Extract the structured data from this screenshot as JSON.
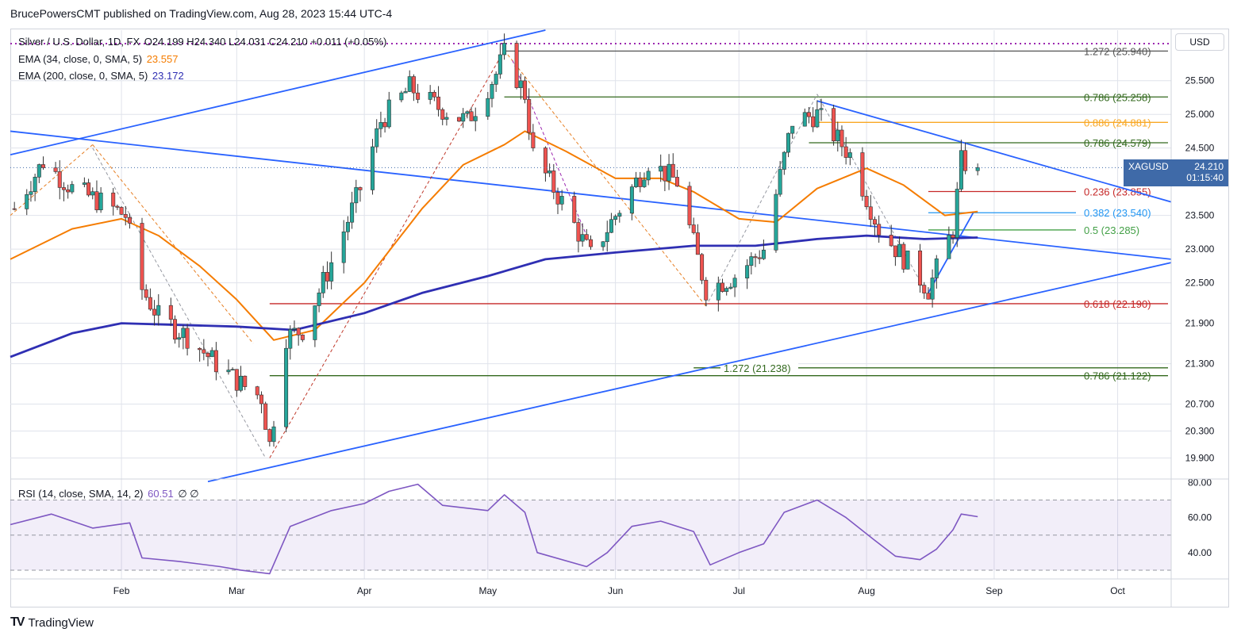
{
  "header": {
    "publisher": "BrucePowersCMT published on TradingView.com, Aug 28, 2023 15:44 UTC-4"
  },
  "legend": {
    "symbol": "Silver / U.S. Dollar, 1D, FX",
    "ohlc": "O24.199  H24.340  L24.031  C24.210  +0.011 (+0.05%)",
    "ema34_label": "EMA (34, close, 0, SMA, 5)",
    "ema34_value": "23.557",
    "ema200_label": "EMA (200, close, 0, SMA, 5)",
    "ema200_value": "23.172",
    "rsi_label": "RSI (14, close, SMA, 14, 2)",
    "rsi_value": "60.51",
    "rsi_extra": "∅  ∅"
  },
  "currency_button": "USD",
  "price_tag": {
    "symbol": "XAGUSD",
    "price": "24.210",
    "countdown": "01:15:40"
  },
  "footer": {
    "brand": "TradingView",
    "logo": "TV"
  },
  "colors": {
    "up": "#26a69a",
    "down": "#ef5350",
    "ema34": "#f57c00",
    "ema200": "#2f2fb3",
    "trend": "#2962ff",
    "fib_green": "#33691e",
    "fib_red": "#b71c1c",
    "fib_orange": "#f9a825",
    "fib_blue": "#2196f3",
    "rsi": "#7e57c2",
    "grid": "#e0e3eb"
  },
  "chart_data": [
    {
      "type": "candlestick",
      "title": "",
      "ylim": [
        19.6,
        26.25
      ],
      "y_ticks": [
        "25.500",
        "25.000",
        "24.500",
        "23.500",
        "23.000",
        "22.500",
        "21.900",
        "21.300",
        "20.700",
        "20.300",
        "19.900"
      ],
      "y_tick_values": [
        25.5,
        25.0,
        24.5,
        23.5,
        23.0,
        22.5,
        21.9,
        21.3,
        20.7,
        20.3,
        19.9
      ],
      "x_ticks": [
        "Feb",
        "Mar",
        "Apr",
        "May",
        "Jun",
        "Jul",
        "Aug",
        "Sep",
        "Oct"
      ],
      "x_tick_dates": [
        "2023-02-01",
        "2023-03-01",
        "2023-04-01",
        "2023-05-01",
        "2023-06-01",
        "2023-07-01",
        "2023-08-01",
        "2023-09-01",
        "2023-10-01"
      ],
      "x_range": [
        "2023-01-05",
        "2023-10-14"
      ],
      "close_series": [
        {
          "date": "2023-01-06",
          "close": 23.6
        },
        {
          "date": "2023-01-13",
          "close": 24.3
        },
        {
          "date": "2023-01-20",
          "close": 23.9
        },
        {
          "date": "2023-01-27",
          "close": 23.7
        },
        {
          "date": "2023-02-02",
          "close": 23.5
        },
        {
          "date": "2023-02-06",
          "close": 22.4
        },
        {
          "date": "2023-02-10",
          "close": 22.0
        },
        {
          "date": "2023-02-17",
          "close": 21.7
        },
        {
          "date": "2023-02-24",
          "close": 21.3
        },
        {
          "date": "2023-03-02",
          "close": 21.0
        },
        {
          "date": "2023-03-07",
          "close": 20.8
        },
        {
          "date": "2023-03-09",
          "close": 20.1
        },
        {
          "date": "2023-03-13",
          "close": 21.7
        },
        {
          "date": "2023-03-17",
          "close": 21.8
        },
        {
          "date": "2023-03-24",
          "close": 22.8
        },
        {
          "date": "2023-03-31",
          "close": 23.9
        },
        {
          "date": "2023-04-05",
          "close": 24.9
        },
        {
          "date": "2023-04-12",
          "close": 25.4
        },
        {
          "date": "2023-04-19",
          "close": 25.1
        },
        {
          "date": "2023-04-26",
          "close": 24.9
        },
        {
          "date": "2023-05-03",
          "close": 25.6
        },
        {
          "date": "2023-05-05",
          "close": 25.9
        },
        {
          "date": "2023-05-10",
          "close": 25.3
        },
        {
          "date": "2023-05-12",
          "close": 24.4
        },
        {
          "date": "2023-05-19",
          "close": 23.7
        },
        {
          "date": "2023-05-26",
          "close": 22.9
        },
        {
          "date": "2023-06-02",
          "close": 23.6
        },
        {
          "date": "2023-06-09",
          "close": 24.3
        },
        {
          "date": "2023-06-16",
          "close": 24.0
        },
        {
          "date": "2023-06-23",
          "close": 22.4
        },
        {
          "date": "2023-06-30",
          "close": 22.6
        },
        {
          "date": "2023-07-07",
          "close": 23.0
        },
        {
          "date": "2023-07-14",
          "close": 24.9
        },
        {
          "date": "2023-07-20",
          "close": 25.0
        },
        {
          "date": "2023-07-28",
          "close": 24.4
        },
        {
          "date": "2023-08-04",
          "close": 23.3
        },
        {
          "date": "2023-08-11",
          "close": 22.8
        },
        {
          "date": "2023-08-16",
          "close": 22.4
        },
        {
          "date": "2023-08-22",
          "close": 23.3
        },
        {
          "date": "2023-08-24",
          "close": 24.3
        },
        {
          "date": "2023-08-28",
          "close": 24.21
        }
      ],
      "series": [
        {
          "name": "EMA (34, close, 0, SMA, 5)",
          "points": [
            {
              "date": "2023-01-05",
              "value": 22.85
            },
            {
              "date": "2023-01-20",
              "value": 23.3
            },
            {
              "date": "2023-02-01",
              "value": 23.45
            },
            {
              "date": "2023-02-10",
              "value": 23.2
            },
            {
              "date": "2023-02-20",
              "value": 22.75
            },
            {
              "date": "2023-03-01",
              "value": 22.25
            },
            {
              "date": "2023-03-10",
              "value": 21.65
            },
            {
              "date": "2023-03-20",
              "value": 21.8
            },
            {
              "date": "2023-04-01",
              "value": 22.5
            },
            {
              "date": "2023-04-15",
              "value": 23.6
            },
            {
              "date": "2023-04-25",
              "value": 24.25
            },
            {
              "date": "2023-05-05",
              "value": 24.55
            },
            {
              "date": "2023-05-10",
              "value": 24.75
            },
            {
              "date": "2023-05-20",
              "value": 24.45
            },
            {
              "date": "2023-06-01",
              "value": 24.05
            },
            {
              "date": "2023-06-12",
              "value": 24.05
            },
            {
              "date": "2023-06-20",
              "value": 23.85
            },
            {
              "date": "2023-07-01",
              "value": 23.45
            },
            {
              "date": "2023-07-10",
              "value": 23.4
            },
            {
              "date": "2023-07-20",
              "value": 23.9
            },
            {
              "date": "2023-08-01",
              "value": 24.2
            },
            {
              "date": "2023-08-10",
              "value": 23.95
            },
            {
              "date": "2023-08-20",
              "value": 23.5
            },
            {
              "date": "2023-08-28",
              "value": 23.557
            }
          ]
        },
        {
          "name": "EMA (200, close, 0, SMA, 5)",
          "points": [
            {
              "date": "2023-01-05",
              "value": 21.4
            },
            {
              "date": "2023-01-20",
              "value": 21.75
            },
            {
              "date": "2023-02-01",
              "value": 21.9
            },
            {
              "date": "2023-03-01",
              "value": 21.85
            },
            {
              "date": "2023-03-15",
              "value": 21.8
            },
            {
              "date": "2023-04-01",
              "value": 22.05
            },
            {
              "date": "2023-04-15",
              "value": 22.35
            },
            {
              "date": "2023-05-01",
              "value": 22.6
            },
            {
              "date": "2023-05-15",
              "value": 22.85
            },
            {
              "date": "2023-06-01",
              "value": 22.95
            },
            {
              "date": "2023-06-20",
              "value": 23.05
            },
            {
              "date": "2023-07-05",
              "value": 23.05
            },
            {
              "date": "2023-07-20",
              "value": 23.15
            },
            {
              "date": "2023-08-01",
              "value": 23.2
            },
            {
              "date": "2023-08-15",
              "value": 23.15
            },
            {
              "date": "2023-08-28",
              "value": 23.172
            }
          ]
        }
      ],
      "fib_levels": [
        {
          "ratio": "1.272",
          "price": 25.94,
          "label": "1.272 (25.940)",
          "color": "#555555",
          "from": "2023-05-05"
        },
        {
          "ratio": "0.786",
          "price": 25.258,
          "label": "0.786 (25.258)",
          "color": "#33691e",
          "from": "2023-05-05"
        },
        {
          "ratio": "0.886",
          "price": 24.881,
          "label": "0.886 (24.881)",
          "color": "#f9a825",
          "from": "2023-07-20"
        },
        {
          "ratio": "0.786",
          "price": 24.579,
          "label": "0.786 (24.579)",
          "color": "#33691e",
          "from": "2023-07-18"
        },
        {
          "ratio": "0.236",
          "price": 23.855,
          "label": "0.236 (23.855)",
          "color": "#c62828",
          "from": "2023-08-16"
        },
        {
          "ratio": "0.382",
          "price": 23.54,
          "label": "0.382 (23.540)",
          "color": "#2196f3",
          "from": "2023-08-16"
        },
        {
          "ratio": "0.5",
          "price": 23.285,
          "label": "0.5 (23.285)",
          "color": "#43a047",
          "from": "2023-08-16"
        },
        {
          "ratio": "0.618",
          "price": 22.19,
          "label": "0.618 (22.190)",
          "color": "#c62828",
          "from": "2023-03-09"
        },
        {
          "ratio": "1.272",
          "price": 21.238,
          "label": "1.272 (21.238)",
          "color": "#33691e",
          "from": "2023-06-20"
        },
        {
          "ratio": "0.786",
          "price": 21.122,
          "label": "0.786 (21.122)",
          "color": "#33691e",
          "from": "2023-03-09"
        }
      ],
      "last_price": 24.21
    },
    {
      "type": "line",
      "title": "",
      "series_name": "RSI (14, close, SMA, 14, 2)",
      "ylim": [
        25,
        82
      ],
      "y_ticks": [
        "80.00",
        "60.00",
        "40.00"
      ],
      "y_tick_values": [
        80,
        60,
        40
      ],
      "bands": [
        70,
        50,
        30
      ],
      "points": [
        {
          "date": "2023-01-05",
          "value": 56
        },
        {
          "date": "2023-01-15",
          "value": 62
        },
        {
          "date": "2023-01-25",
          "value": 54
        },
        {
          "date": "2023-02-03",
          "value": 57
        },
        {
          "date": "2023-02-06",
          "value": 37
        },
        {
          "date": "2023-02-15",
          "value": 35
        },
        {
          "date": "2023-02-25",
          "value": 32
        },
        {
          "date": "2023-03-02",
          "value": 30
        },
        {
          "date": "2023-03-09",
          "value": 28
        },
        {
          "date": "2023-03-14",
          "value": 55
        },
        {
          "date": "2023-03-24",
          "value": 64
        },
        {
          "date": "2023-04-01",
          "value": 68
        },
        {
          "date": "2023-04-07",
          "value": 75
        },
        {
          "date": "2023-04-14",
          "value": 79
        },
        {
          "date": "2023-04-20",
          "value": 67
        },
        {
          "date": "2023-05-01",
          "value": 64
        },
        {
          "date": "2023-05-05",
          "value": 73
        },
        {
          "date": "2023-05-10",
          "value": 63
        },
        {
          "date": "2023-05-13",
          "value": 40
        },
        {
          "date": "2023-05-25",
          "value": 32
        },
        {
          "date": "2023-05-30",
          "value": 40
        },
        {
          "date": "2023-06-05",
          "value": 55
        },
        {
          "date": "2023-06-12",
          "value": 58
        },
        {
          "date": "2023-06-20",
          "value": 52
        },
        {
          "date": "2023-06-24",
          "value": 33
        },
        {
          "date": "2023-07-01",
          "value": 40
        },
        {
          "date": "2023-07-07",
          "value": 45
        },
        {
          "date": "2023-07-12",
          "value": 63
        },
        {
          "date": "2023-07-20",
          "value": 70
        },
        {
          "date": "2023-07-27",
          "value": 60
        },
        {
          "date": "2023-08-03",
          "value": 47
        },
        {
          "date": "2023-08-08",
          "value": 38
        },
        {
          "date": "2023-08-14",
          "value": 36
        },
        {
          "date": "2023-08-18",
          "value": 42
        },
        {
          "date": "2023-08-22",
          "value": 53
        },
        {
          "date": "2023-08-24",
          "value": 62
        },
        {
          "date": "2023-08-28",
          "value": 60.51
        }
      ]
    }
  ]
}
